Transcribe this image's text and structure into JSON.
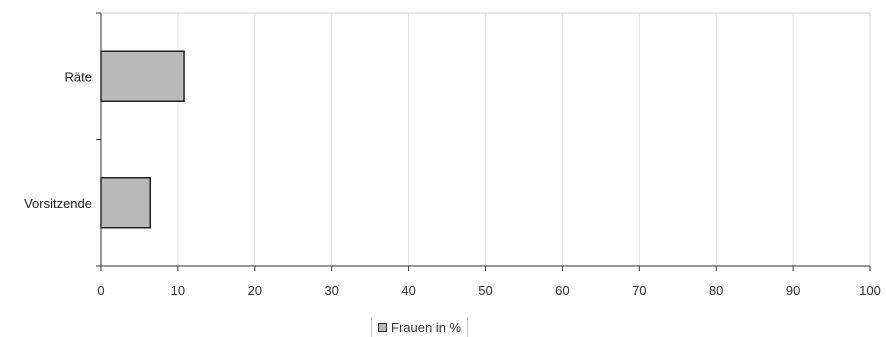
{
  "chart_data": {
    "type": "bar",
    "orientation": "horizontal",
    "categories": [
      "Räte",
      "Vorsitzende"
    ],
    "series": [
      {
        "name": "Frauen in %",
        "values": [
          10.8,
          6.4
        ],
        "color": "#b9b9b9"
      }
    ],
    "xlim": [
      0,
      100
    ],
    "x_ticks": [
      "0",
      "10",
      "20",
      "30",
      "40",
      "50",
      "60",
      "70",
      "80",
      "90",
      "100"
    ],
    "grid": true,
    "legend_position": "bottom-center"
  }
}
